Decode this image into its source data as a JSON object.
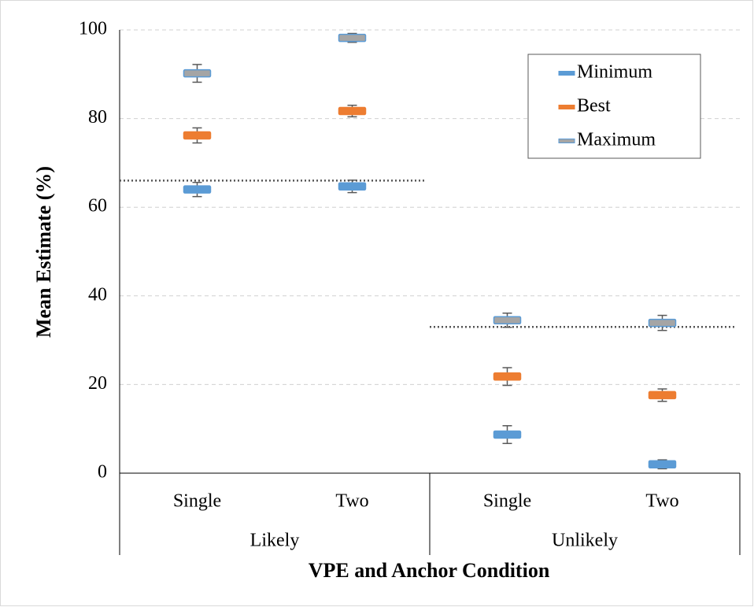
{
  "chart_data": {
    "type": "errorbar",
    "x_label": "VPE and Anchor Condition",
    "y_label": "Mean Estimate (%)",
    "categories": [
      "Single",
      "Two",
      "Single",
      "Two"
    ],
    "groups": [
      "Likely",
      "Unlikely"
    ],
    "ylim": [
      0,
      100
    ],
    "yticks": [
      0,
      20,
      40,
      60,
      80,
      100
    ],
    "grid": true,
    "legend": "top-right",
    "series": [
      {
        "name": "Minimum",
        "color": "#5b9bd5",
        "values": [
          64,
          64.7,
          8.7,
          2.0
        ],
        "errors": [
          1.6,
          1.4,
          2.0,
          1.0
        ]
      },
      {
        "name": "Best",
        "color": "#ed7d31",
        "values": [
          76.2,
          81.7,
          21.8,
          17.6
        ],
        "errors": [
          1.7,
          1.3,
          2.0,
          1.4
        ]
      },
      {
        "name": "Maximum",
        "color": "#a5a5a5",
        "edge": "#5b9bd5",
        "values": [
          90.2,
          98.2,
          34.5,
          33.9
        ],
        "errors": [
          2.0,
          1.0,
          1.6,
          1.7
        ]
      }
    ],
    "reference_lines": [
      66,
      33
    ]
  }
}
